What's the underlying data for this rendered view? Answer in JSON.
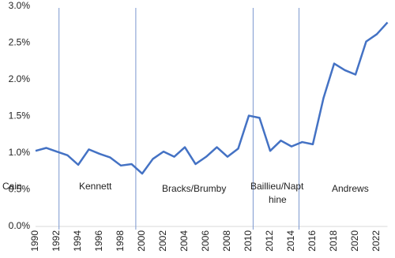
{
  "chart_data": {
    "type": "line",
    "x": [
      1990,
      1991,
      1992,
      1993,
      1994,
      1995,
      1996,
      1997,
      1998,
      1999,
      2000,
      2001,
      2002,
      2003,
      2004,
      2005,
      2006,
      2007,
      2008,
      2009,
      2010,
      2011,
      2012,
      2013,
      2014,
      2015,
      2016,
      2017,
      2018,
      2019,
      2020,
      2021,
      2022,
      2023
    ],
    "series": [
      {
        "color": "#4472c4",
        "values": [
          1.03,
          1.07,
          1.02,
          0.97,
          0.84,
          1.05,
          0.99,
          0.94,
          0.83,
          0.85,
          0.72,
          0.92,
          1.02,
          0.95,
          1.08,
          0.85,
          0.95,
          1.08,
          0.95,
          1.06,
          1.51,
          1.48,
          1.03,
          1.17,
          1.09,
          1.15,
          1.12,
          1.75,
          2.22,
          2.13,
          2.07,
          2.52,
          2.62,
          2.78
        ]
      }
    ],
    "xlim": [
      1990,
      2023
    ],
    "xticks": [
      1990,
      1992,
      1994,
      1996,
      1998,
      2000,
      2002,
      2004,
      2006,
      2008,
      2010,
      2012,
      2014,
      2016,
      2018,
      2020,
      2022
    ],
    "ylim": [
      0,
      3
    ],
    "yticks": [
      {
        "value": 0,
        "label": "0.0%"
      },
      {
        "value": 0.5,
        "label": "0.5%"
      },
      {
        "value": 1,
        "label": "1.0%"
      },
      {
        "value": 1.5,
        "label": "1.5%"
      },
      {
        "value": 2,
        "label": "2.0%"
      },
      {
        "value": 2.5,
        "label": "2.5%"
      },
      {
        "value": 3,
        "label": "3.0%"
      }
    ],
    "dividers": [
      1992.2,
      1999.4,
      2010.4,
      2014.7
    ],
    "divider_color": "#7b97cf",
    "annotations": [
      {
        "lines": [
          "Cain"
        ]
      },
      {
        "lines": [
          "Kennett"
        ]
      },
      {
        "lines": [
          "Bracks/Brumby"
        ]
      },
      {
        "lines": [
          "Baillieu/Napt",
          "hine"
        ]
      },
      {
        "lines": [
          "Andrews"
        ]
      }
    ]
  }
}
